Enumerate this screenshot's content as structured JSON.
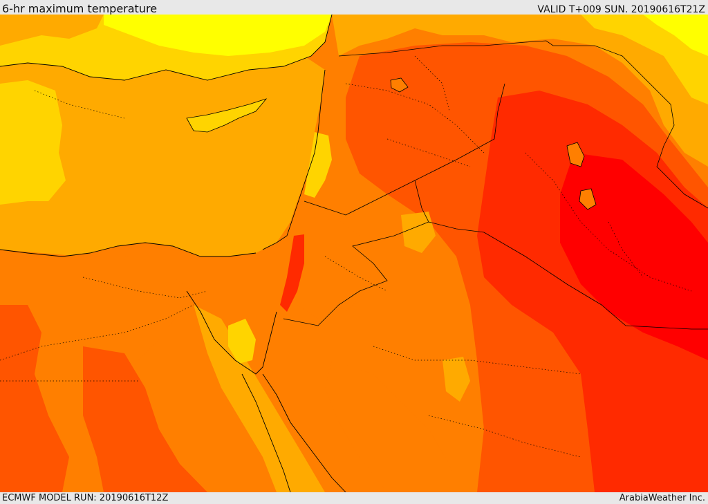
{
  "header": {
    "title": "6-hr maximum temperature",
    "valid_time": "VALID T+009 SUN. 20190616T21Z"
  },
  "footer": {
    "model_run": "ECMWF MODEL RUN: 20190616T12Z",
    "credit": "ArabiaWeather Inc."
  },
  "colors": {
    "yellow": "#ffff00",
    "light_orange": "#ffd400",
    "orange": "#ffaa00",
    "dark_orange": "#ff7f00",
    "red_orange": "#ff5500",
    "red": "#ff2a00",
    "deep_red": "#ff0000",
    "borders": "#000000"
  }
}
